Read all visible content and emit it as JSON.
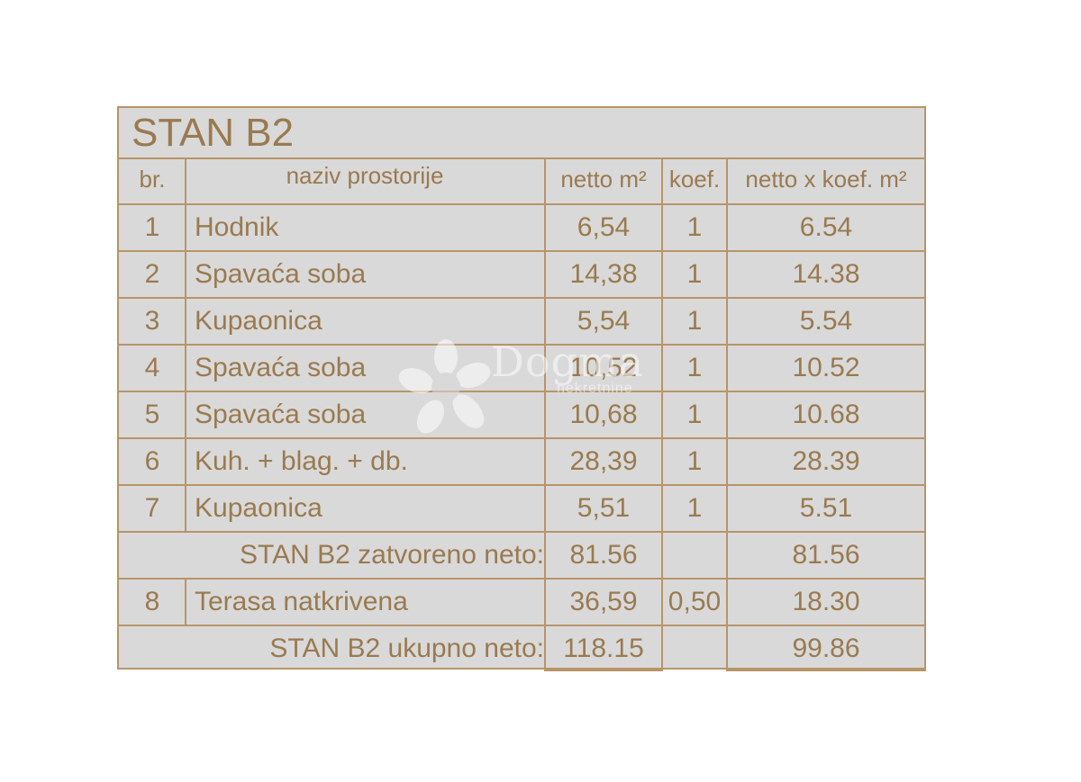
{
  "title": "STAN B2",
  "headers": {
    "nr": "br.",
    "room": "naziv prostorije",
    "net": "netto m²",
    "coef": "koef.",
    "net_coef": "netto x koef. m²"
  },
  "rows": [
    {
      "nr": "1",
      "room": "Hodnik",
      "net": "6,54",
      "coef": "1",
      "net_coef": "6.54"
    },
    {
      "nr": "2",
      "room": "Spavaća soba",
      "net": "14,38",
      "coef": "1",
      "net_coef": "14.38"
    },
    {
      "nr": "3",
      "room": "Kupaonica",
      "net": "5,54",
      "coef": "1",
      "net_coef": "5.54"
    },
    {
      "nr": "4",
      "room": "Spavaća soba",
      "net": "10,52",
      "coef": "1",
      "net_coef": "10.52"
    },
    {
      "nr": "5",
      "room": "Spavaća soba",
      "net": "10,68",
      "coef": "1",
      "net_coef": "10.68"
    },
    {
      "nr": "6",
      "room": "Kuh. + blag. + db.",
      "net": "28,39",
      "coef": "1",
      "net_coef": "28.39"
    },
    {
      "nr": "7",
      "room": "Kupaonica",
      "net": "5,51",
      "coef": "1",
      "net_coef": "5.51"
    }
  ],
  "subtotal_closed": {
    "label": "STAN B2 zatvoreno neto:",
    "net": "81.56",
    "net_coef": "81.56"
  },
  "terrace": {
    "nr": "8",
    "room": "Terasa natkrivena",
    "net": "36,59",
    "coef": "0,50",
    "net_coef": "18.30"
  },
  "total": {
    "label": "STAN B2 ukupno neto:",
    "net": "118.15",
    "net_coef": "99.86"
  },
  "watermark": {
    "brand": "Dogma",
    "sub": "nekretnine",
    "icon": "flower-logo-icon"
  },
  "colors": {
    "line": "#b89469",
    "text": "#9a7a4f",
    "fill": "#d9d9d9"
  }
}
